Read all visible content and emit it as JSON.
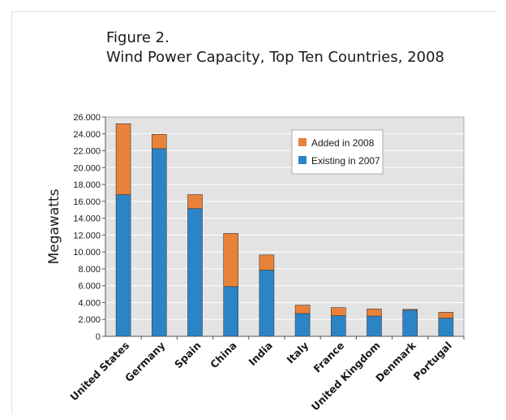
{
  "figure_number": "Figure 2.",
  "colors": {
    "added": "#e8823a",
    "existing": "#2a84c6",
    "plot_bg": "#e3e3e3",
    "grid": "#ffffff"
  },
  "chart_data": {
    "type": "bar",
    "stacked": true,
    "title": "Wind Power Capacity, Top Ten Countries, 2008",
    "ylabel": "Megawatts",
    "xlabel": "",
    "ylim": [
      0,
      26000
    ],
    "yticks": [
      "0",
      "2.000",
      "4.000",
      "6.000",
      "8.000",
      "10.000",
      "12.000",
      "14.000",
      "16.000",
      "18.000",
      "20.000",
      "22.000",
      "24.000",
      "26.000"
    ],
    "grid": true,
    "legend_position": "top-right",
    "categories": [
      "United States",
      "Germany",
      "Spain",
      "China",
      "India",
      "Italy",
      "France",
      "United Kingdom",
      "Denmark",
      "Portugal"
    ],
    "series": [
      {
        "name": "Existing in 2007",
        "color": "#2a84c6",
        "values": [
          16800,
          22250,
          15150,
          5900,
          7850,
          2700,
          2450,
          2400,
          3100,
          2150
        ]
      },
      {
        "name": "Added in 2008",
        "color": "#e8823a",
        "values": [
          8400,
          1700,
          1650,
          6300,
          1800,
          1000,
          950,
          850,
          100,
          700
        ]
      }
    ]
  }
}
